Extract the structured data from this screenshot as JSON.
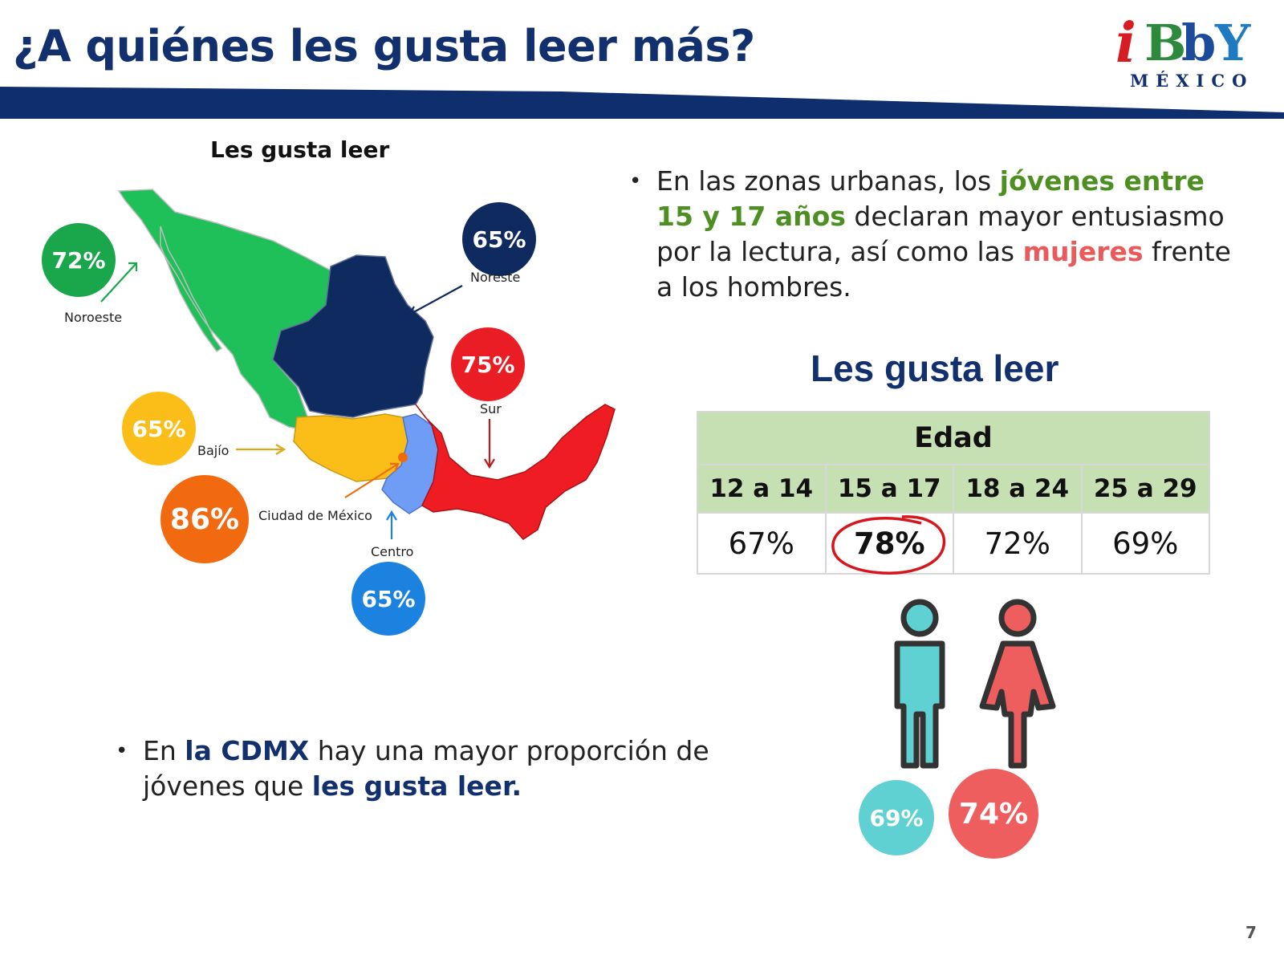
{
  "header": {
    "title": "¿A quiénes les gusta leer más?",
    "logo": {
      "letters": [
        "i",
        "B",
        "b",
        "Y"
      ],
      "subtitle": "MÉXICO"
    },
    "band_color": "#0e2e6e"
  },
  "map": {
    "title": "Les gusta leer",
    "regions": [
      {
        "label": "Noroeste",
        "percent": "72%",
        "color": "#1aa64a"
      },
      {
        "label": "Noreste",
        "percent": "65%",
        "color": "#0f2a5e"
      },
      {
        "label": "Sur",
        "percent": "75%",
        "color": "#ea1c24"
      },
      {
        "label": "Bajío",
        "percent": "65%",
        "color": "#fbbd17"
      },
      {
        "label": "Ciudad de México",
        "percent": "86%",
        "color": "#f26a10"
      },
      {
        "label": "Centro",
        "percent": "65%",
        "color": "#1b82e0"
      }
    ]
  },
  "bullet_urban": {
    "text_1": "En las zonas urbanas, los ",
    "highlight_age": "jóvenes entre 15 y 17 años",
    "text_2": " declaran mayor entusiasmo por la lectura, así como las ",
    "highlight_women": "mujeres",
    "text_3": " frente a los hombres."
  },
  "age_table": {
    "title": "Les gusta leer",
    "group_header": "Edad",
    "columns": [
      "12 a 14",
      "15 a 17",
      "18 a 24",
      "25 a 29"
    ],
    "values": [
      "67%",
      "78%",
      "72%",
      "69%"
    ],
    "highlighted_column": "15 a 17"
  },
  "gender": {
    "men": {
      "percent": "69%",
      "color": "#5fd1d3"
    },
    "women": {
      "percent": "74%",
      "color": "#ee5e5e"
    }
  },
  "bullet_cdmx": {
    "text_1": "En ",
    "highlight_1": "la CDMX",
    "text_2": " hay una mayor proporción de jóvenes que ",
    "highlight_2": "les gusta leer."
  },
  "page_number": "7"
}
